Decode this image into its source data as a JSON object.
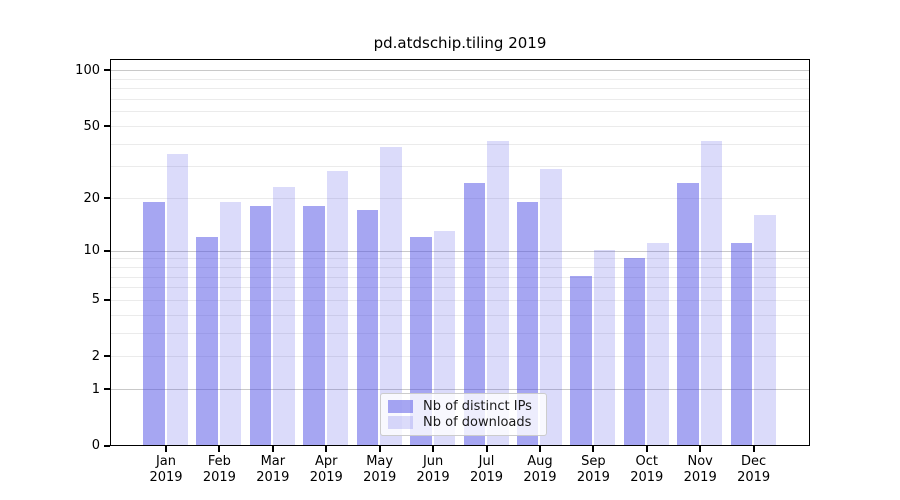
{
  "chart_data": {
    "type": "bar",
    "title": "pd.atdschip.tiling 2019",
    "categories": [
      "Jan",
      "Feb",
      "Mar",
      "Apr",
      "May",
      "Jun",
      "Jul",
      "Aug",
      "Sep",
      "Oct",
      "Nov",
      "Dec"
    ],
    "category_year_label": "2019",
    "series": [
      {
        "name": "Nb of distinct IPs",
        "color": "rgba(77,77,230,0.5)",
        "color_on_white": "#a6a6f0",
        "values": [
          19,
          12,
          18,
          18,
          17,
          12,
          24,
          19,
          7,
          9,
          24,
          11
        ]
      },
      {
        "name": "Nb of downloads",
        "color": "rgba(77,77,230,0.2)",
        "color_on_white": "#dcdcf8",
        "values": [
          35,
          19,
          23,
          28,
          38,
          13,
          41,
          29,
          10,
          11,
          41,
          16
        ]
      }
    ],
    "yscale": "log1p",
    "ylim": [
      0,
      112
    ],
    "yticks": [
      0,
      1,
      2,
      5,
      10,
      20,
      50,
      100
    ],
    "major_gridlines": [
      1,
      10,
      100
    ],
    "minor_gridlines": [
      2,
      3,
      4,
      5,
      6,
      7,
      8,
      9,
      20,
      30,
      40,
      50,
      60,
      70,
      80,
      90
    ],
    "grid_color_major": "#c9c9c9",
    "grid_color_minor": "#ebebeb",
    "legend_position": "lower center",
    "axis_color": "#000000",
    "background_color": "#ffffff"
  }
}
